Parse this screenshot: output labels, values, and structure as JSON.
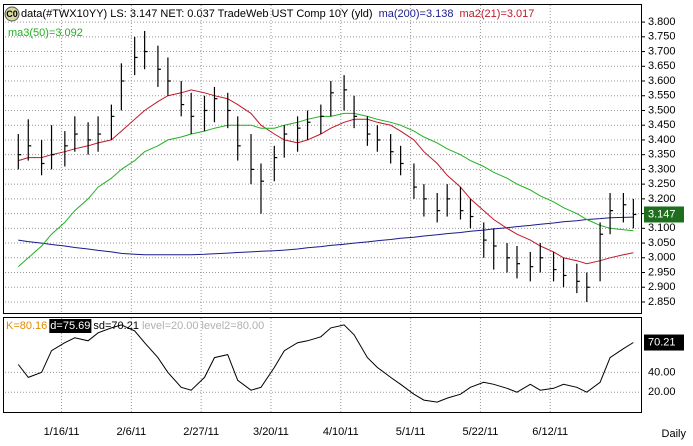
{
  "chart_data": {
    "type": "ohlc",
    "icon": "C0",
    "title": "data(#TWX10YY) LS: 3.147  NET: 0.037  TradeWeb UST Comp 10Y (yld)",
    "x": [
      "1/3/11",
      "1/6/11",
      "1/10/11",
      "1/13/11",
      "1/17/11",
      "1/20/11",
      "1/24/11",
      "1/27/11",
      "1/31/11",
      "2/3/11",
      "2/7/11",
      "2/10/11",
      "2/14/11",
      "2/17/11",
      "2/21/11",
      "2/24/11",
      "2/28/11",
      "3/3/11",
      "3/7/11",
      "3/10/11",
      "3/14/11",
      "3/17/11",
      "3/21/11",
      "3/24/11",
      "3/28/11",
      "3/31/11",
      "4/4/11",
      "4/7/11",
      "4/11/11",
      "4/14/11",
      "4/18/11",
      "4/21/11",
      "4/25/11",
      "4/28/11",
      "5/2/11",
      "5/5/11",
      "5/9/11",
      "5/12/11",
      "5/16/11",
      "5/19/11",
      "5/23/11",
      "5/26/11",
      "5/30/11",
      "6/2/11",
      "6/6/11",
      "6/9/11",
      "6/13/11",
      "6/16/11",
      "6/20/11",
      "6/23/11",
      "6/27/11",
      "6/30/11",
      "7/4/11",
      "7/7/11"
    ],
    "high": [
      3.42,
      3.47,
      3.4,
      3.45,
      3.43,
      3.48,
      3.46,
      3.48,
      3.52,
      3.66,
      3.75,
      3.77,
      3.72,
      3.68,
      3.6,
      3.56,
      3.55,
      3.58,
      3.56,
      3.48,
      3.42,
      3.32,
      3.38,
      3.45,
      3.48,
      3.5,
      3.52,
      3.6,
      3.62,
      3.55,
      3.48,
      3.45,
      3.42,
      3.38,
      3.32,
      3.25,
      3.22,
      3.25,
      3.24,
      3.2,
      3.12,
      3.1,
      3.05,
      3.04,
      3.02,
      3.05,
      3.02,
      3.0,
      2.98,
      2.95,
      3.12,
      3.22,
      3.22,
      3.2
    ],
    "low": [
      3.3,
      3.33,
      3.28,
      3.3,
      3.31,
      3.36,
      3.35,
      3.36,
      3.4,
      3.5,
      3.62,
      3.64,
      3.58,
      3.55,
      3.48,
      3.42,
      3.43,
      3.46,
      3.44,
      3.33,
      3.25,
      3.15,
      3.26,
      3.34,
      3.36,
      3.4,
      3.42,
      3.48,
      3.5,
      3.44,
      3.38,
      3.36,
      3.32,
      3.28,
      3.2,
      3.14,
      3.12,
      3.14,
      3.13,
      3.1,
      3.0,
      2.96,
      2.95,
      2.93,
      2.92,
      2.95,
      2.92,
      2.9,
      2.88,
      2.85,
      2.92,
      3.08,
      3.12,
      3.1
    ],
    "close": [
      3.35,
      3.38,
      3.32,
      3.35,
      3.38,
      3.42,
      3.4,
      3.42,
      3.48,
      3.6,
      3.68,
      3.7,
      3.64,
      3.6,
      3.52,
      3.48,
      3.5,
      3.54,
      3.5,
      3.38,
      3.3,
      3.26,
      3.34,
      3.42,
      3.44,
      3.46,
      3.48,
      3.56,
      3.57,
      3.48,
      3.42,
      3.4,
      3.36,
      3.32,
      3.24,
      3.2,
      3.16,
      3.2,
      3.16,
      3.14,
      3.06,
      3.04,
      3.0,
      2.98,
      2.97,
      3.0,
      2.96,
      2.94,
      2.92,
      2.9,
      3.08,
      3.16,
      3.18,
      3.147
    ],
    "color": "#000000",
    "last_label": "3.147",
    "last_value": 3.147,
    "last_color": "#1e6e1e",
    "series": [
      {
        "name": "ma(200)=3.138",
        "color": "#1a1a8c",
        "values": [
          3.06,
          3.055,
          3.05,
          3.045,
          3.04,
          3.035,
          3.03,
          3.025,
          3.02,
          3.015,
          3.012,
          3.01,
          3.01,
          3.01,
          3.01,
          3.01,
          3.012,
          3.014,
          3.016,
          3.018,
          3.02,
          3.022,
          3.024,
          3.026,
          3.03,
          3.034,
          3.038,
          3.042,
          3.046,
          3.05,
          3.054,
          3.058,
          3.062,
          3.066,
          3.07,
          3.074,
          3.078,
          3.082,
          3.086,
          3.09,
          3.094,
          3.098,
          3.102,
          3.106,
          3.11,
          3.114,
          3.118,
          3.122,
          3.126,
          3.13,
          3.133,
          3.136,
          3.137,
          3.138
        ]
      },
      {
        "name": "ma2(21)=3.017",
        "color": "#c0182a",
        "values": [
          3.33,
          3.34,
          3.34,
          3.35,
          3.36,
          3.37,
          3.38,
          3.39,
          3.4,
          3.43,
          3.47,
          3.5,
          3.53,
          3.55,
          3.56,
          3.57,
          3.56,
          3.55,
          3.54,
          3.52,
          3.49,
          3.45,
          3.42,
          3.4,
          3.39,
          3.4,
          3.42,
          3.44,
          3.46,
          3.47,
          3.47,
          3.46,
          3.45,
          3.43,
          3.4,
          3.36,
          3.32,
          3.28,
          3.24,
          3.2,
          3.16,
          3.13,
          3.1,
          3.08,
          3.06,
          3.04,
          3.02,
          3.0,
          2.99,
          2.98,
          2.99,
          3.0,
          3.01,
          3.017
        ]
      },
      {
        "name": "ma3(50)=3.092",
        "color": "#22b022",
        "values": [
          2.97,
          3.0,
          3.04,
          3.08,
          3.12,
          3.16,
          3.2,
          3.24,
          3.27,
          3.3,
          3.33,
          3.36,
          3.38,
          3.4,
          3.41,
          3.42,
          3.43,
          3.44,
          3.45,
          3.45,
          3.45,
          3.44,
          3.44,
          3.45,
          3.46,
          3.47,
          3.48,
          3.48,
          3.49,
          3.49,
          3.48,
          3.47,
          3.46,
          3.45,
          3.43,
          3.41,
          3.39,
          3.37,
          3.35,
          3.33,
          3.31,
          3.29,
          3.27,
          3.25,
          3.23,
          3.21,
          3.19,
          3.17,
          3.15,
          3.13,
          3.11,
          3.1,
          3.095,
          3.092
        ]
      }
    ],
    "xlim": [
      "12/30/10",
      "7/9/11"
    ],
    "xticks": [
      "1/16/11",
      "2/6/11",
      "2/27/11",
      "3/20/11",
      "4/10/11",
      "5/1/11",
      "5/22/11",
      "6/12/11"
    ],
    "ylim": [
      2.816,
      3.858
    ],
    "yticks": [
      {
        "value": 2.85,
        "label": "2.850"
      },
      {
        "value": 2.9,
        "label": "2.900"
      },
      {
        "value": 2.95,
        "label": "2.950"
      },
      {
        "value": 3.0,
        "label": "3.000"
      },
      {
        "value": 3.05,
        "label": "3.050"
      },
      {
        "value": 3.1,
        "label": "3.100"
      },
      {
        "value": 3.15,
        "label": "3.150"
      },
      {
        "value": 3.2,
        "label": "3.200"
      },
      {
        "value": 3.25,
        "label": "3.250"
      },
      {
        "value": 3.3,
        "label": "3.300"
      },
      {
        "value": 3.35,
        "label": "3.350"
      },
      {
        "value": 3.4,
        "label": "3.400"
      },
      {
        "value": 3.45,
        "label": "3.450"
      },
      {
        "value": 3.5,
        "label": "3.500"
      },
      {
        "value": 3.55,
        "label": "3.550"
      },
      {
        "value": 3.6,
        "label": "3.600"
      },
      {
        "value": 3.65,
        "label": "3.650"
      },
      {
        "value": 3.7,
        "label": "3.700"
      },
      {
        "value": 3.75,
        "label": "3.750"
      },
      {
        "value": 3.8,
        "label": "3.800"
      }
    ],
    "grid": true,
    "period": "Daily",
    "stochastic": {
      "legend": [
        {
          "text": "K=80.16",
          "color": "#e08a00"
        },
        {
          "text": "d=75.69",
          "color": "#ffffff",
          "box": "#000000"
        },
        {
          "text": "sd=70.21",
          "color": "#000000"
        },
        {
          "text": "level=20.00",
          "color": "#b0b0b0"
        },
        {
          "text": "level2=80.00",
          "color": "#b0b0b0"
        }
      ],
      "color": "#000000",
      "values": [
        48,
        35,
        40,
        62,
        70,
        75,
        72,
        80,
        85,
        88,
        82,
        70,
        55,
        40,
        25,
        22,
        35,
        55,
        58,
        32,
        22,
        25,
        45,
        62,
        70,
        72,
        76,
        85,
        88,
        78,
        55,
        45,
        35,
        28,
        18,
        12,
        10,
        14,
        18,
        25,
        30,
        28,
        24,
        20,
        28,
        22,
        24,
        28,
        25,
        20,
        30,
        55,
        64,
        70.21
      ],
      "last_label": "70.21",
      "last_value": 70.21,
      "ylim": [
        0,
        95
      ],
      "yticks": [
        {
          "value": 20,
          "label": "20.00"
        },
        {
          "value": 40,
          "label": "40.00"
        }
      ]
    }
  }
}
